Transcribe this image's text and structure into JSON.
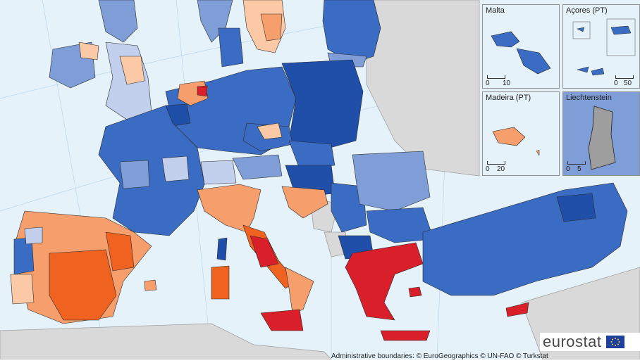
{
  "insets": {
    "malta": {
      "title": "Malta",
      "scale_start": "0",
      "scale_end": "10"
    },
    "acores": {
      "title": "Açores (PT)",
      "scale_start": "0",
      "scale_end": "50"
    },
    "madeira": {
      "title": "Madeira (PT)",
      "scale_start": "0",
      "scale_end": "20"
    },
    "liechtenstein": {
      "title": "Liechtenstein",
      "scale_start": "0",
      "scale_end": "5"
    }
  },
  "logo": {
    "text": "eurostat"
  },
  "credit": {
    "text": "Administrative boundaries: © EuroGeographics © UN-FAO © Turkstat"
  },
  "colors": {
    "sea": "#e6f2fa",
    "non_data": "#d9d9d9",
    "no_data_region": "#9e9e9e",
    "dark_blue": "#1f4fa8",
    "medium_blue": "#3a6cc4",
    "light_blue": "#7f9ed8",
    "pale_blue": "#c2d0ee",
    "pale_orange": "#fbc9a6",
    "light_orange": "#f79f6c",
    "orange": "#f0621f",
    "red": "#d9202a"
  }
}
